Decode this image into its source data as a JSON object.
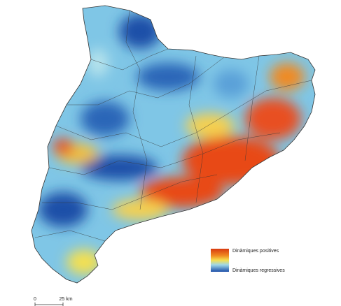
{
  "legend": {
    "high": "Dinàmiques positives",
    "low": "Dinàmiques regressives"
  },
  "scale_bar": {
    "start": "0",
    "end": "25 km"
  }
}
